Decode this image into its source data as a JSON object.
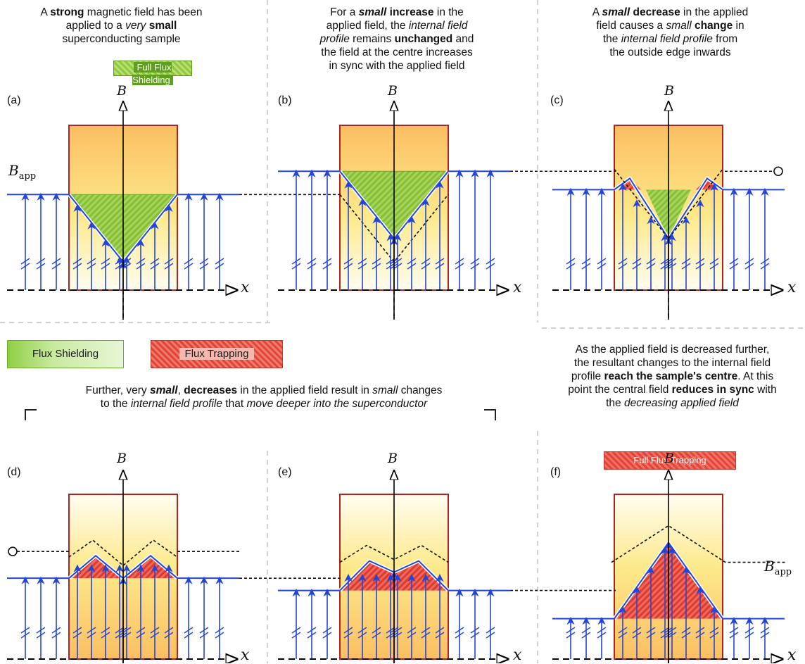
{
  "captions": {
    "a": [
      {
        "text": "A ",
        "b": false,
        "i": false
      },
      {
        "text": "strong",
        "b": true,
        "i": false
      },
      {
        "text": " magnetic field has been",
        "b": false,
        "i": false
      },
      {
        "br": true
      },
      {
        "text": "applied to a ",
        "b": false,
        "i": false
      },
      {
        "text": "very",
        "b": false,
        "i": true
      },
      {
        "text": " ",
        "b": false,
        "i": false
      },
      {
        "text": "small",
        "b": true,
        "i": false
      },
      {
        "br": true
      },
      {
        "text": "superconducting sample",
        "b": false,
        "i": false
      }
    ],
    "b": [
      {
        "text": "For a ",
        "b": false,
        "i": false
      },
      {
        "text": "small",
        "b": true,
        "i": true
      },
      {
        "text": " ",
        "b": false,
        "i": false
      },
      {
        "text": "increase",
        "b": true,
        "i": false
      },
      {
        "text": " in the",
        "b": false,
        "i": false
      },
      {
        "br": true
      },
      {
        "text": "applied field, the ",
        "b": false,
        "i": false
      },
      {
        "text": "internal field",
        "b": false,
        "i": true
      },
      {
        "br": true
      },
      {
        "text": "profile",
        "b": false,
        "i": true
      },
      {
        "text": " remains ",
        "b": false,
        "i": false
      },
      {
        "text": "unchanged",
        "b": true,
        "i": false
      },
      {
        "text": " and",
        "b": false,
        "i": false
      },
      {
        "br": true
      },
      {
        "text": "the field at the centre increases",
        "b": false,
        "i": false
      },
      {
        "br": true
      },
      {
        "text": "in sync with the applied field",
        "b": false,
        "i": false
      }
    ],
    "c": [
      {
        "text": "A ",
        "b": false,
        "i": false
      },
      {
        "text": "small",
        "b": true,
        "i": true
      },
      {
        "text": " ",
        "b": false,
        "i": false
      },
      {
        "text": "decrease",
        "b": true,
        "i": false
      },
      {
        "text": " in the applied",
        "b": false,
        "i": false
      },
      {
        "br": true
      },
      {
        "text": "field causes a ",
        "b": false,
        "i": false
      },
      {
        "text": "small",
        "b": false,
        "i": true
      },
      {
        "text": " ",
        "b": false,
        "i": false
      },
      {
        "text": "change",
        "b": true,
        "i": false
      },
      {
        "text": " in",
        "b": false,
        "i": false
      },
      {
        "br": true
      },
      {
        "text": "the ",
        "b": false,
        "i": false
      },
      {
        "text": "internal field profile",
        "b": false,
        "i": true
      },
      {
        "text": " from",
        "b": false,
        "i": false
      },
      {
        "br": true
      },
      {
        "text": "the outside edge inwards",
        "b": false,
        "i": false
      }
    ],
    "de": [
      {
        "text": "Further, very ",
        "b": false,
        "i": false
      },
      {
        "text": "small",
        "b": true,
        "i": true
      },
      {
        "text": ", ",
        "b": false,
        "i": false
      },
      {
        "text": "decreases",
        "b": true,
        "i": false
      },
      {
        "text": " in the applied field result in ",
        "b": false,
        "i": false
      },
      {
        "text": "small",
        "b": false,
        "i": true
      },
      {
        "text": " changes",
        "b": false,
        "i": false
      },
      {
        "br": true
      },
      {
        "text": "to the ",
        "b": false,
        "i": false
      },
      {
        "text": "internal field profile",
        "b": false,
        "i": true
      },
      {
        "text": " that ",
        "b": false,
        "i": false
      },
      {
        "text": "move deeper into the superconductor",
        "b": false,
        "i": true
      }
    ],
    "f": [
      {
        "text": "As the applied field is decreased further,",
        "b": false,
        "i": false
      },
      {
        "br": true
      },
      {
        "text": "the resultant changes to the internal field",
        "b": false,
        "i": false
      },
      {
        "br": true
      },
      {
        "text": "profile ",
        "b": false,
        "i": false
      },
      {
        "text": "reach the sample's centre",
        "b": true,
        "i": false
      },
      {
        "text": ".  At this",
        "b": false,
        "i": false
      },
      {
        "br": true
      },
      {
        "text": "point the central field ",
        "b": false,
        "i": false
      },
      {
        "text": "reduces in sync",
        "b": true,
        "i": false
      },
      {
        "text": " with",
        "b": false,
        "i": false
      },
      {
        "br": true
      },
      {
        "text": "the ",
        "b": false,
        "i": false
      },
      {
        "text": "decreasing applied field",
        "b": false,
        "i": true
      }
    ]
  },
  "badges": {
    "full_flux_shielding": "Full Flux Shielding",
    "flux_shielding": "Flux Shielding",
    "flux_trapping": "Flux Trapping",
    "full_flux_trapping": "Full Flux Trapping"
  },
  "panel_labels": {
    "a": "(a)",
    "b": "(b)",
    "c": "(c)",
    "d": "(d)",
    "e": "(e)",
    "f": "(f)"
  },
  "axis": {
    "y": "B",
    "x": "x"
  },
  "bapp": {
    "main": "B",
    "sub": "app"
  },
  "colors": {
    "field_line": "#2446d8",
    "sample_border": "#b0231f",
    "sample_fill_top": "#fbbf62",
    "sample_fill_bottom": "#fffde8",
    "shield_green": "#8cc43a",
    "trap_red": "#e4443b",
    "divider": "#b5b5b5"
  },
  "panels": [
    {
      "id": "a",
      "applied_level": 0.55,
      "centre_level": 0.0,
      "profile": "full-shielding"
    },
    {
      "id": "b",
      "applied_level": 0.74,
      "centre_level": 0.19,
      "profile": "shielding-raised"
    },
    {
      "id": "c",
      "applied_level": 0.59,
      "centre_level": 0.19,
      "profile": "partial-trapping-edges"
    },
    {
      "id": "d",
      "applied_level": 0.43,
      "centre_level": 0.43,
      "profile": "trapping-deeper"
    },
    {
      "id": "e",
      "applied_level": 0.33,
      "centre_level": 0.33,
      "profile": "trapping-near-centre"
    },
    {
      "id": "f",
      "applied_level": 0.1,
      "centre_level": 0.43,
      "profile": "full-trapping"
    }
  ]
}
